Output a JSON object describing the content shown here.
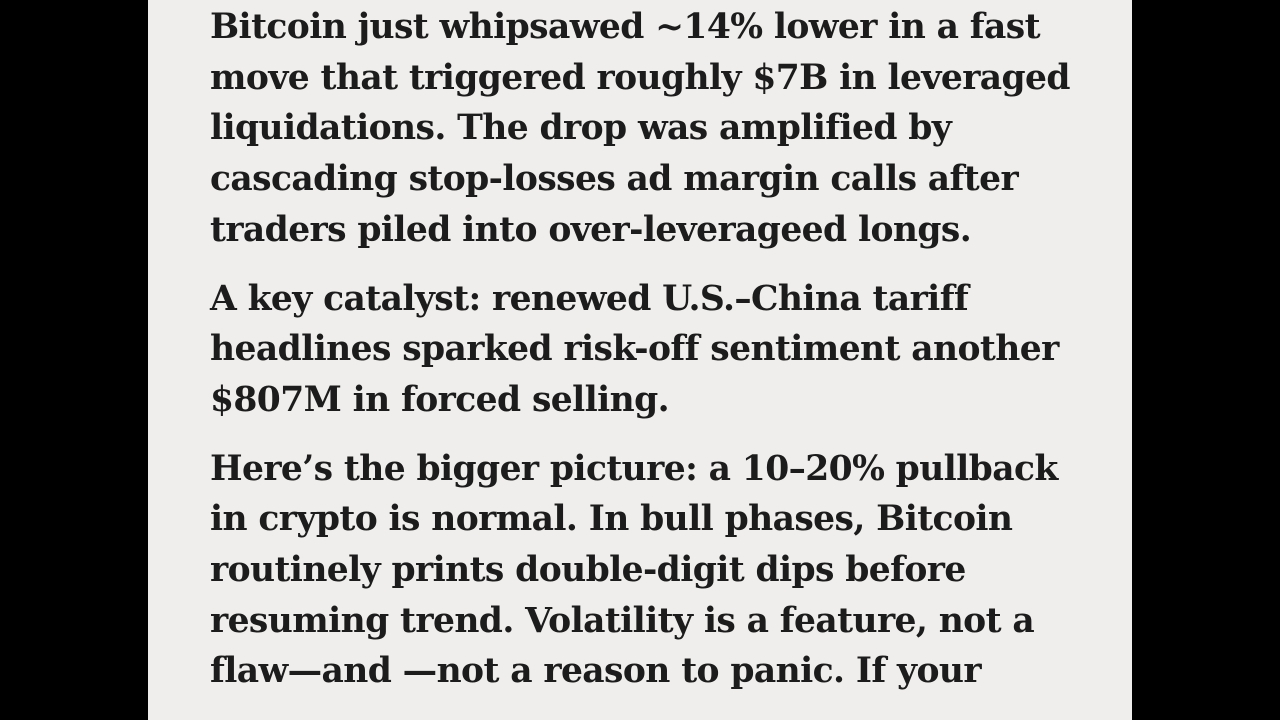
{
  "colors": {
    "background": "#000000",
    "page": "#efeeec",
    "text": "#1c1c1c"
  },
  "article": {
    "paragraphs": [
      {
        "lines": [
          "Bitcoin just whipsawed ~14% lower in a fast",
          "move that triggered roughly $7B in leveraged",
          "liquidations. The drop was amplified by",
          "cascading stop-losses ad margin calls after",
          "traders piled into over-leverageed longs."
        ]
      },
      {
        "lines": [
          "A key catalyst: renewed U.S.–China tariff",
          "headlines sparked risk-off sentiment another",
          "$807M in forced selling."
        ]
      },
      {
        "lines": [
          "Here’s the bigger picture: a 10–20% pullback",
          "in crypto is normal. In bull phases, Bitcoin",
          "routinely prints double-digit dips before",
          "resuming trend. Volatility is a feature, not a",
          "flaw—and —not  a reason to panic. If your"
        ]
      }
    ]
  }
}
